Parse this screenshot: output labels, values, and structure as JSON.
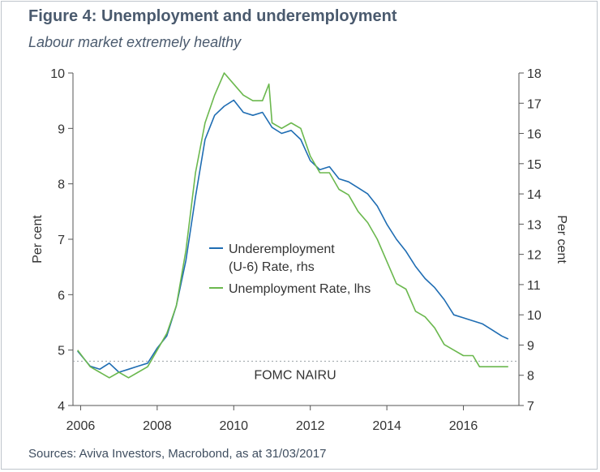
{
  "header": {
    "title": "Figure 4: Unemployment and underemployment",
    "subtitle": "Labour market extremely healthy"
  },
  "footer": {
    "source": "Sources: Aviva Investors, Macrobond, as at 31/03/2017"
  },
  "chart_data": {
    "type": "line",
    "ylabel_left": "Per cent",
    "ylabel_right": "Per cent",
    "x_range": [
      2005.8,
      2017.45
    ],
    "x_ticks": [
      2006,
      2008,
      2010,
      2012,
      2014,
      2016
    ],
    "ylim_left": [
      4,
      10
    ],
    "y_ticks_left": [
      4,
      5,
      6,
      7,
      8,
      9,
      10
    ],
    "ylim_right": [
      7,
      18
    ],
    "y_ticks_right": [
      7,
      8,
      9,
      10,
      11,
      12,
      13,
      14,
      15,
      16,
      17,
      18
    ],
    "grid": false,
    "legend_position": "center",
    "reference_line": {
      "label": "FOMC NAIRU",
      "axis": "left",
      "value": 4.8
    },
    "colors": {
      "u6": "#1f6db3",
      "unemployment": "#6bb84e",
      "reference": "#9aa0a6",
      "axis": "#555555"
    },
    "series": [
      {
        "name": "Underemployment (U-6) Rate, rhs",
        "axis": "right",
        "color": "#1f6db3",
        "x": [
          2005.92,
          2006.25,
          2006.5,
          2006.75,
          2007.0,
          2007.25,
          2007.5,
          2007.75,
          2008.0,
          2008.25,
          2008.5,
          2008.75,
          2009.0,
          2009.25,
          2009.5,
          2009.75,
          2010.0,
          2010.25,
          2010.5,
          2010.75,
          2011.0,
          2011.25,
          2011.5,
          2011.75,
          2012.0,
          2012.25,
          2012.5,
          2012.75,
          2013.0,
          2013.25,
          2013.5,
          2013.75,
          2014.0,
          2014.25,
          2014.5,
          2014.75,
          2015.0,
          2015.25,
          2015.5,
          2015.75,
          2016.0,
          2016.25,
          2016.5,
          2016.75,
          2017.0,
          2017.17
        ],
        "values": [
          8.8,
          8.3,
          8.2,
          8.4,
          8.1,
          8.2,
          8.3,
          8.4,
          8.9,
          9.3,
          10.3,
          11.8,
          13.9,
          15.8,
          16.6,
          16.9,
          17.1,
          16.7,
          16.6,
          16.7,
          16.2,
          16.0,
          16.1,
          15.8,
          15.1,
          14.8,
          14.9,
          14.5,
          14.4,
          14.2,
          14.0,
          13.6,
          13.0,
          12.5,
          12.1,
          11.6,
          11.2,
          10.9,
          10.5,
          10.0,
          9.9,
          9.8,
          9.7,
          9.5,
          9.3,
          9.2
        ]
      },
      {
        "name": "Unemployment Rate, lhs",
        "axis": "left",
        "color": "#6bb84e",
        "x": [
          2005.92,
          2006.25,
          2006.5,
          2006.75,
          2007.0,
          2007.25,
          2007.5,
          2007.75,
          2008.0,
          2008.25,
          2008.5,
          2008.75,
          2009.0,
          2009.25,
          2009.5,
          2009.75,
          2010.0,
          2010.25,
          2010.5,
          2010.75,
          2010.92,
          2011.0,
          2011.25,
          2011.5,
          2011.75,
          2012.0,
          2012.25,
          2012.5,
          2012.75,
          2013.0,
          2013.25,
          2013.5,
          2013.75,
          2014.0,
          2014.25,
          2014.5,
          2014.75,
          2015.0,
          2015.25,
          2015.5,
          2015.75,
          2016.0,
          2016.25,
          2016.42,
          2016.75,
          2017.0,
          2017.17
        ],
        "values": [
          5.0,
          4.7,
          4.6,
          4.5,
          4.6,
          4.5,
          4.6,
          4.7,
          5.0,
          5.3,
          5.8,
          6.8,
          8.2,
          9.1,
          9.6,
          10.0,
          9.8,
          9.6,
          9.5,
          9.5,
          9.8,
          9.1,
          9.0,
          9.1,
          9.0,
          8.5,
          8.2,
          8.2,
          7.9,
          7.8,
          7.5,
          7.3,
          7.0,
          6.6,
          6.2,
          6.1,
          5.7,
          5.6,
          5.4,
          5.1,
          5.0,
          4.9,
          4.9,
          4.7,
          4.7,
          4.7,
          4.7
        ]
      }
    ]
  }
}
